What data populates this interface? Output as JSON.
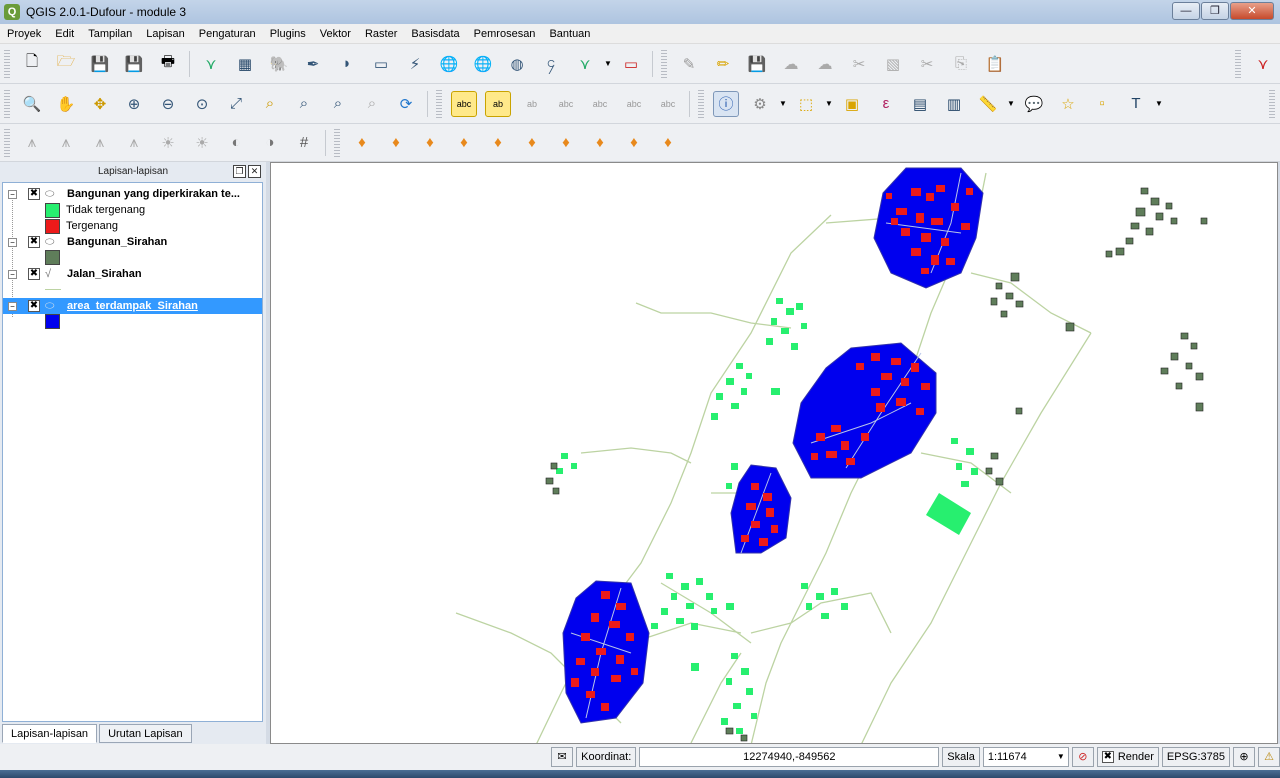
{
  "window": {
    "title": "QGIS 2.0.1-Dufour - module 3",
    "minimize": "—",
    "maximize": "❐",
    "close": "✕"
  },
  "menu": [
    "Proyek",
    "Edit",
    "Tampilan",
    "Lapisan",
    "Pengaturan",
    "Plugins",
    "Vektor",
    "Raster",
    "Basisdata",
    "Pemrosesan",
    "Bantuan"
  ],
  "toolbar1": {
    "icons": [
      "new-project-icon",
      "open-project-icon",
      "save-project-icon",
      "save-as-icon",
      "print-composer-icon",
      "add-vector-icon",
      "add-raster-icon",
      "add-postgis-icon",
      "add-spatialite-icon",
      "add-mssql-icon",
      "add-oracle-icon",
      "add-wms-icon",
      "add-wcs-icon",
      "add-wfs-icon",
      "add-delimited-icon",
      "new-layer-icon",
      "remove-layer-icon",
      "edit-icon",
      "toggle-editing-icon",
      "save-edits-icon",
      "add-feature-icon",
      "move-feature-icon",
      "node-tool-icon",
      "delete-selected-icon",
      "cut-icon",
      "copy-icon",
      "paste-icon",
      "digitize-icon"
    ]
  },
  "toolbar2": {
    "icons": [
      "pan-to-selection-icon",
      "pan-icon",
      "pan-map-icon",
      "zoom-in-icon",
      "zoom-out-icon",
      "zoom-native-icon",
      "zoom-full-icon",
      "zoom-layer-icon",
      "zoom-selection-icon",
      "zoom-last-icon",
      "zoom-next-icon",
      "refresh-icon",
      "label-icon",
      "label-pin-icon",
      "label-show-icon",
      "label-move-icon",
      "label-rotate-icon",
      "label-change-icon",
      "label-edit-icon",
      "identify-icon",
      "measure-tool-icon",
      "select-icon",
      "deselect-icon",
      "expression-icon",
      "attribute-table-icon",
      "statistics-icon",
      "measure-line-icon",
      "annotation-icon",
      "new-bookmark-icon",
      "show-bookmarks-icon",
      "text-annotation-icon"
    ]
  },
  "toolbar3": {
    "icons": [
      "raster-histogram-icon",
      "raster-stretch-icon",
      "raster-local-icon",
      "raster-full-icon",
      "brightness-icon",
      "contrast-icon",
      "raster-info-icon",
      "raster-settings-icon",
      "grid-icon",
      "gdal-icon",
      "gdal-tools-icon",
      "gdal-refresh-icon",
      "gdal-sliders-icon",
      "gdal-list-icon",
      "gdal-user-icon",
      "gdal-swap-icon",
      "gdal-settings-icon",
      "gdal-download-icon",
      "gdal-layers-icon"
    ]
  },
  "layers_panel": {
    "title": "Lapisan-lapisan",
    "layers": [
      {
        "name": "Bangunan yang diperkirakan te...",
        "checked": "✖",
        "symbols": [
          {
            "label": "Tidak tergenang",
            "color": "#27ef6f"
          },
          {
            "label": "Tergenang",
            "color": "#ec1a1a"
          }
        ]
      },
      {
        "name": "Bangunan_Sirahan",
        "checked": "✖",
        "symbols": [
          {
            "label": "",
            "color": "#5f7d5a"
          }
        ]
      },
      {
        "name": "Jalan_Sirahan",
        "checked": "✖",
        "symbols": []
      },
      {
        "name": "area_terdampak_Sirahan",
        "checked": "✖",
        "symbols": [
          {
            "label": "",
            "color": "#0000ee"
          }
        ]
      }
    ],
    "tabs": [
      "Lapisan-lapisan",
      "Urutan Lapisan"
    ]
  },
  "statusbar": {
    "coord_label": "Koordinat:",
    "coord_value": "12274940,-849562",
    "scale_label": "Skala",
    "scale_value": "1:11674",
    "render_label": "Render",
    "render_checked": "✖",
    "epsg": "EPSG:3785"
  },
  "map_colors": {
    "blue_area": "#0000ee",
    "flooded": "#ec1a1a",
    "not_flooded": "#27ef6f",
    "building": "#5f7d5a",
    "road": "#bcd3a2"
  }
}
